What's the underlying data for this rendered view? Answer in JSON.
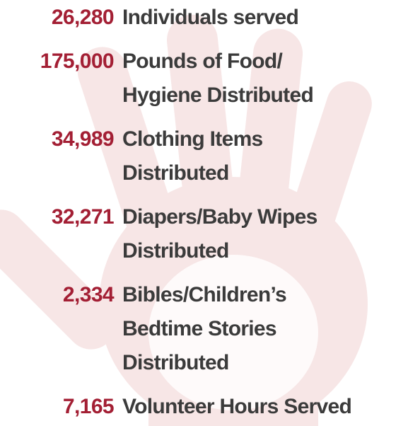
{
  "stats": [
    {
      "number": "26,280",
      "label": [
        "Individuals served"
      ]
    },
    {
      "number": "175,000",
      "label": [
        "Pounds of Food/",
        "Hygiene Distributed"
      ]
    },
    {
      "number": "34,989",
      "label": [
        "Clothing Items",
        "Distributed"
      ]
    },
    {
      "number": "32,271",
      "label": [
        "Diapers/Baby Wipes",
        "Distributed"
      ]
    },
    {
      "number": "2,334",
      "label": [
        "Bibles/Children’s",
        "Bedtime Stories",
        "Distributed"
      ]
    },
    {
      "number": "7,165",
      "label": [
        "Volunteer Hours Served"
      ]
    }
  ]
}
